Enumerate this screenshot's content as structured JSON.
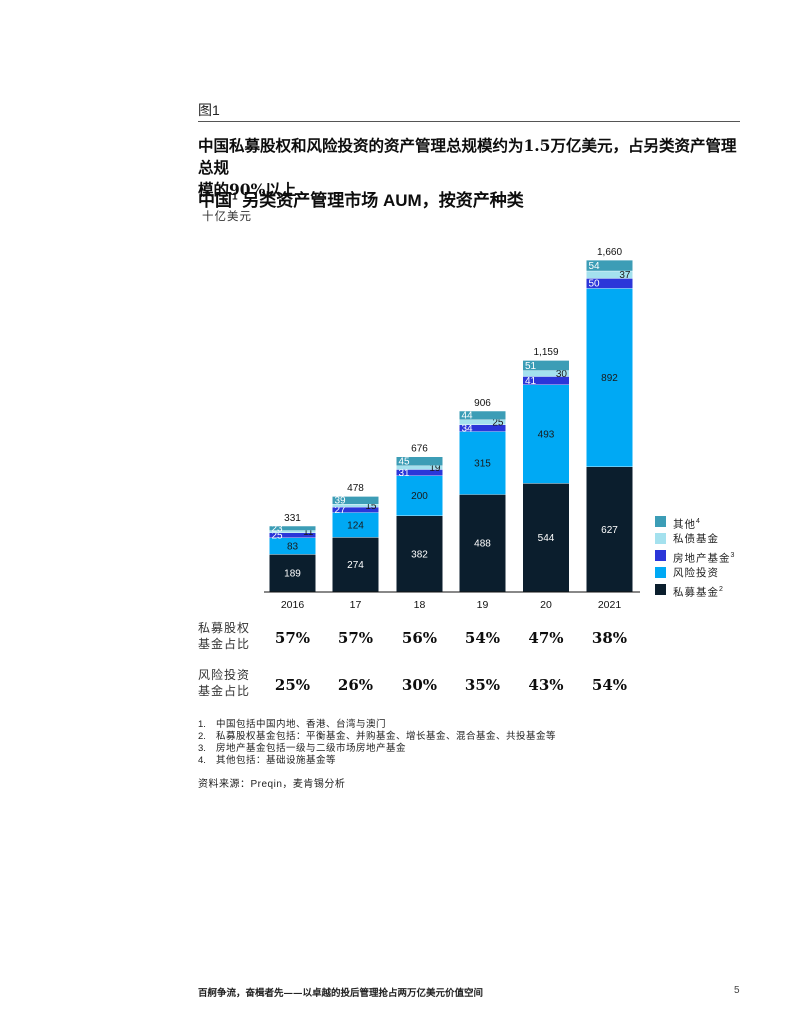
{
  "page": {
    "figure_label": "图1",
    "headline_line1": "中国私募股权和风险投资的资产管理总规模约为1.5万亿美元，占另类资产管理总规",
    "headline_line2": "模的90%以上",
    "footer_text": "百舸争流，奋楫者先——以卓越的投后管理抢占两万亿美元价值空间",
    "page_number": "5"
  },
  "chart_data": {
    "type": "bar",
    "stacked": true,
    "title": "中国",
    "title_sup": "1",
    "title_rest": " 另类资产管理市场 AUM，按资产种类",
    "unit": "十亿美元",
    "categories": [
      "2016",
      "17",
      "18",
      "19",
      "20",
      "2021"
    ],
    "totals": [
      "331",
      "478",
      "676",
      "906",
      "1,159",
      "1,660"
    ],
    "ylim": [
      0,
      1700
    ],
    "series": [
      {
        "name": "私募基金",
        "sup": "2",
        "color": "#0b1e2d",
        "label_color": "#ffffff",
        "values": [
          189,
          274,
          382,
          488,
          544,
          627
        ]
      },
      {
        "name": "风险投资",
        "sup": "",
        "color": "#00a9f4",
        "label_color": "#1a1a1a",
        "values": [
          83,
          124,
          200,
          315,
          493,
          892
        ]
      },
      {
        "name": "房地产基金",
        "sup": "3",
        "color": "#2b36d9",
        "label_color": "#ffffff",
        "values": [
          25,
          27,
          31,
          34,
          41,
          50
        ]
      },
      {
        "name": "私债基金",
        "sup": "",
        "color": "#a4e1ee",
        "label_color": "#1a1a1a",
        "values": [
          11,
          15,
          19,
          25,
          30,
          37
        ]
      },
      {
        "name": "其他",
        "sup": "4",
        "color": "#3c9db6",
        "label_color": "#ffffff",
        "values": [
          23,
          39,
          45,
          44,
          51,
          54
        ]
      }
    ],
    "legend_position": "right",
    "grid": false
  },
  "share_rows": [
    {
      "label_line1": "私募股权",
      "label_line2": "基金占比",
      "values": [
        "57%",
        "57%",
        "56%",
        "54%",
        "47%",
        "38%"
      ]
    },
    {
      "label_line1": "风险投资",
      "label_line2": "基金占比",
      "values": [
        "25%",
        "26%",
        "30%",
        "35%",
        "43%",
        "54%"
      ]
    }
  ],
  "notes": [
    {
      "num": "1.",
      "text": "中国包括中国内地、香港、台湾与澳门"
    },
    {
      "num": "2.",
      "text": "私募股权基金包括：平衡基金、并购基金、增长基金、混合基金、共投基金等"
    },
    {
      "num": "3.",
      "text": "房地产基金包括一级与二级市场房地产基金"
    },
    {
      "num": "4.",
      "text": "其他包括：基础设施基金等"
    }
  ],
  "source": "资料来源：Preqin，麦肯锡分析"
}
